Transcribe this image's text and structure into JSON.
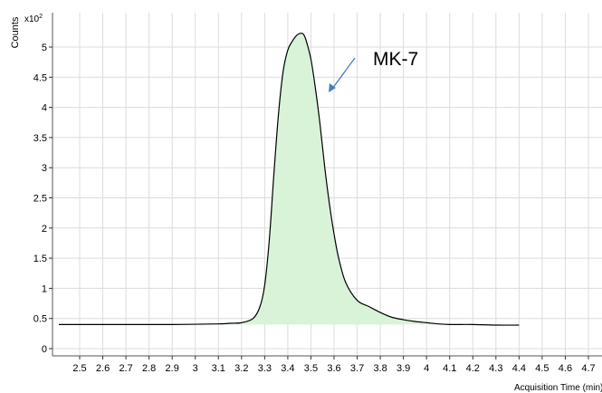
{
  "chart_data": {
    "type": "area",
    "ylabel": "Counts",
    "y_multiplier": "x10",
    "y_multiplier_exp": "2",
    "xlabel": "Acquisition Time (min)",
    "xlim": [
      2.4,
      4.75
    ],
    "ylim": [
      0,
      5.3
    ],
    "x_ticks": [
      "2.5",
      "2.6",
      "2.7",
      "2.8",
      "2.9",
      "3",
      "3.1",
      "3.2",
      "3.3",
      "3.4",
      "3.5",
      "3.6",
      "3.7",
      "3.8",
      "3.9",
      "4",
      "4.1",
      "4.2",
      "4.3",
      "4.4",
      "4.5",
      "4.6",
      "4.7"
    ],
    "y_ticks": [
      "0",
      "0.5",
      "1",
      "1.5",
      "2",
      "2.5",
      "3",
      "3.5",
      "4",
      "4.5",
      "5"
    ],
    "grid": true,
    "fill_color": "#d9f3d9",
    "line_color": "#000000",
    "annotation": {
      "text": "MK-7",
      "arrow_color": "#4a7bc8"
    },
    "series": [
      {
        "x": [
          2.41,
          2.5,
          2.7,
          2.9,
          3.1,
          3.15,
          3.2,
          3.25,
          3.28,
          3.3,
          3.32,
          3.34,
          3.36,
          3.38,
          3.4,
          3.42,
          3.44,
          3.46,
          3.47,
          3.48,
          3.5,
          3.52,
          3.54,
          3.56,
          3.58,
          3.6,
          3.62,
          3.65,
          3.7,
          3.75,
          3.8,
          3.85,
          3.9,
          3.95,
          4.0,
          4.05,
          4.1,
          4.15,
          4.2,
          4.3,
          4.4
        ],
        "y": [
          0.4,
          0.4,
          0.4,
          0.4,
          0.41,
          0.42,
          0.43,
          0.5,
          0.7,
          1.05,
          1.8,
          2.9,
          3.9,
          4.6,
          4.95,
          5.1,
          5.2,
          5.23,
          5.2,
          5.1,
          4.8,
          4.3,
          3.7,
          3.0,
          2.4,
          1.9,
          1.5,
          1.1,
          0.8,
          0.7,
          0.6,
          0.52,
          0.48,
          0.45,
          0.43,
          0.41,
          0.4,
          0.4,
          0.4,
          0.39,
          0.39
        ]
      }
    ]
  }
}
